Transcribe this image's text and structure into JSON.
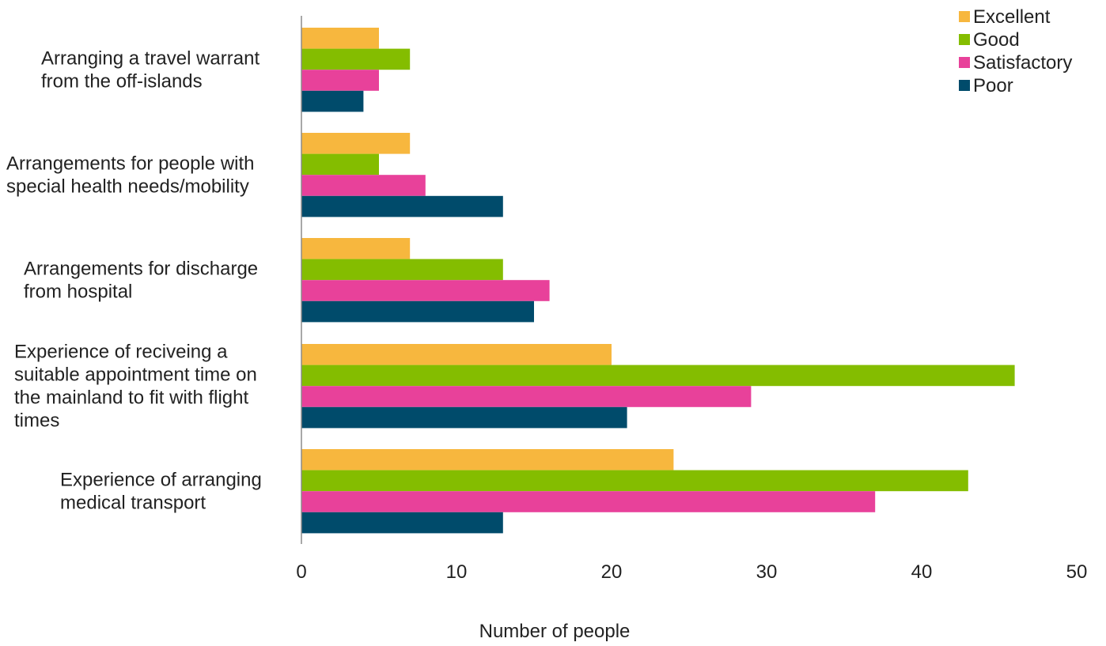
{
  "chart_data": {
    "type": "bar",
    "orientation": "horizontal",
    "title": "",
    "xlabel": "Number of people",
    "ylabel": "",
    "xlim": [
      0,
      50
    ],
    "x_ticks": [
      "0",
      "10",
      "20",
      "30",
      "40",
      "50"
    ],
    "grid": false,
    "legend_position": "top-right",
    "categories": [
      [
        "Arranging a travel warrant",
        "from the off-islands"
      ],
      [
        "Arrangements for people with",
        "special health needs/mobility"
      ],
      [
        "Arrangements for discharge",
        "from hospital"
      ],
      [
        "Experience of reciveing a",
        "suitable appointment time on",
        "the mainland to fit with flight",
        "times"
      ],
      [
        "Experience of arranging",
        "medical transport"
      ]
    ],
    "series": [
      {
        "name": "Excellent",
        "color": "#F7B73E",
        "values": [
          5,
          7,
          7,
          20,
          24
        ]
      },
      {
        "name": "Good",
        "color": "#84BD00",
        "values": [
          7,
          5,
          13,
          46,
          43
        ]
      },
      {
        "name": "Satisfactory",
        "color": "#E8419A",
        "values": [
          5,
          8,
          16,
          29,
          37
        ]
      },
      {
        "name": "Poor",
        "color": "#004B6B",
        "values": [
          4,
          13,
          15,
          21,
          13
        ]
      }
    ]
  }
}
